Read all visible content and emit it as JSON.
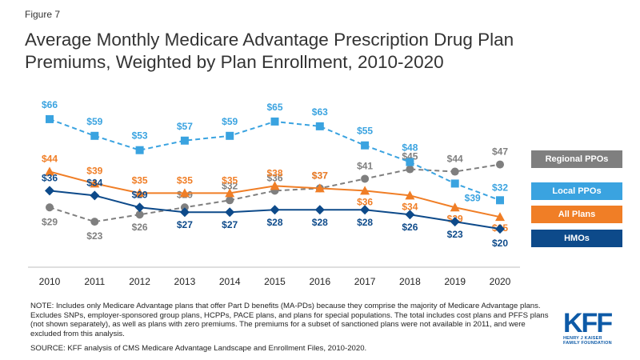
{
  "figure_label": "Figure 7",
  "title": "Average Monthly Medicare Advantage Prescription Drug Plan Premiums, Weighted by Plan Enrollment, 2010-2020",
  "note": "NOTE: Includes only Medicare Advantage plans that offer Part D benefits (MA-PDs) because they comprise the majority of Medicare Advantage plans. Excludes SNPs, employer-sponsored group plans, HCPPs, PACE plans, and plans for special populations. The total includes cost plans and PFFS plans (not shown separately), as well as plans with zero premiums. The premiums for a subset of sanctioned plans were not available in 2011, and were excluded from this analysis.",
  "source": "SOURCE: KFF analysis of CMS Medicare Advantage Landscape and Enrollment Files, 2010-2020.",
  "logo": {
    "mark": "KFF",
    "sub": "HENRY J KAISER FAMILY FOUNDATION"
  },
  "chart_data": {
    "type": "line",
    "categories": [
      "2010",
      "2011",
      "2012",
      "2013",
      "2014",
      "2015",
      "2016",
      "2017",
      "2018",
      "2019",
      "2020"
    ],
    "ylim": [
      15,
      70
    ],
    "xlabel": "",
    "ylabel": "",
    "grid": false,
    "legend_position": "right",
    "series": [
      {
        "name": "Regional PPOs",
        "color": "#7f7f7f",
        "dash": true,
        "marker": "circle",
        "values": [
          29,
          23,
          26,
          29,
          32,
          36,
          37,
          41,
          45,
          44,
          47
        ]
      },
      {
        "name": "Local PPOs",
        "color": "#3aa3e0",
        "dash": true,
        "marker": "square",
        "values": [
          66,
          59,
          53,
          57,
          59,
          65,
          63,
          55,
          48,
          39,
          32
        ]
      },
      {
        "name": "All Plans",
        "color": "#f07e26",
        "dash": false,
        "marker": "triangle",
        "values": [
          44,
          39,
          35,
          35,
          35,
          38,
          37,
          36,
          34,
          29,
          25
        ]
      },
      {
        "name": "HMOs",
        "color": "#0d4a8a",
        "dash": false,
        "marker": "diamond",
        "values": [
          36,
          34,
          29,
          27,
          27,
          28,
          28,
          28,
          26,
          23,
          20
        ]
      }
    ],
    "value_prefix": "$"
  }
}
